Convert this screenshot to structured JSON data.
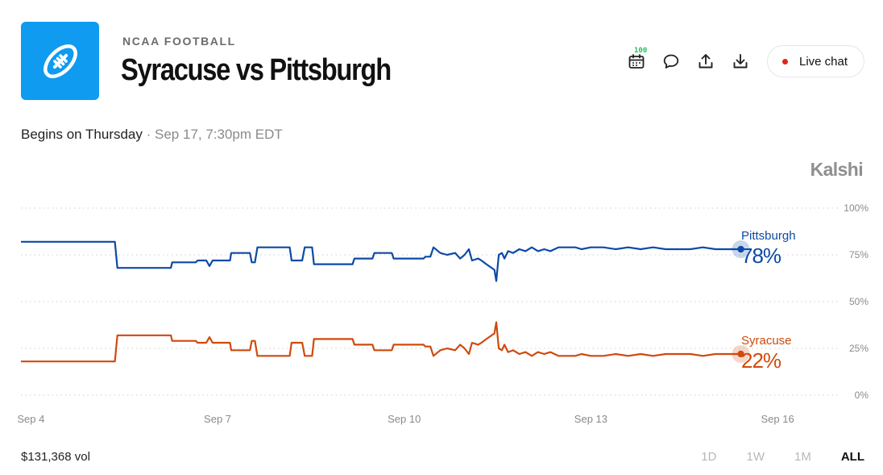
{
  "header": {
    "category": "NCAA FOOTBALL",
    "title": "Syracuse vs Pittsburgh",
    "calendar_badge": "100",
    "live_chat_label": "Live chat",
    "brand": "Kalshi"
  },
  "schedule": {
    "prefix": "Begins on Thursday",
    "separator": " · ",
    "datetime": "Sep 17, 7:30pm EDT"
  },
  "footer": {
    "volume": "$131,368 vol",
    "ranges": [
      "1D",
      "1W",
      "1M",
      "ALL"
    ],
    "active_range": "ALL"
  },
  "colors": {
    "pittsburgh": "#0b4aa6",
    "syracuse": "#cf4a0c",
    "logo": "#0e9bf0"
  },
  "chart_data": {
    "type": "line",
    "y_ticks": [
      "100%",
      "75%",
      "50%",
      "25%",
      "0%"
    ],
    "ylim": [
      0,
      100
    ],
    "x_ticks": [
      "Sep 4",
      "Sep 7",
      "Sep 10",
      "Sep 13",
      "Sep 16"
    ],
    "x_tick_positions": [
      4,
      7,
      10,
      13,
      16
    ],
    "xlim": [
      3.84,
      16.97
    ],
    "grid": true,
    "series": [
      {
        "name": "Pittsburgh",
        "label": "78%",
        "color": "#0b4aa6",
        "points": [
          [
            3.84,
            82
          ],
          [
            5.35,
            82
          ],
          [
            5.39,
            68
          ],
          [
            6.25,
            68
          ],
          [
            6.27,
            71
          ],
          [
            6.65,
            71
          ],
          [
            6.68,
            72
          ],
          [
            6.82,
            72
          ],
          [
            6.87,
            69
          ],
          [
            6.92,
            72
          ],
          [
            7.2,
            72
          ],
          [
            7.22,
            76
          ],
          [
            7.52,
            76
          ],
          [
            7.55,
            71
          ],
          [
            7.6,
            71
          ],
          [
            7.64,
            79
          ],
          [
            8.16,
            79
          ],
          [
            8.19,
            72
          ],
          [
            8.36,
            72
          ],
          [
            8.4,
            79
          ],
          [
            8.52,
            79
          ],
          [
            8.55,
            70
          ],
          [
            9.17,
            70
          ],
          [
            9.2,
            73
          ],
          [
            9.49,
            73
          ],
          [
            9.52,
            76
          ],
          [
            9.8,
            76
          ],
          [
            9.83,
            73
          ],
          [
            10.31,
            73
          ],
          [
            10.34,
            74
          ],
          [
            10.42,
            74
          ],
          [
            10.47,
            79
          ],
          [
            10.58,
            76
          ],
          [
            10.69,
            75
          ],
          [
            10.82,
            76
          ],
          [
            10.9,
            73
          ],
          [
            10.97,
            75
          ],
          [
            11.04,
            78
          ],
          [
            11.09,
            72
          ],
          [
            11.19,
            73
          ],
          [
            11.24,
            72
          ],
          [
            11.32,
            70
          ],
          [
            11.45,
            67
          ],
          [
            11.48,
            61
          ],
          [
            11.52,
            75
          ],
          [
            11.57,
            76
          ],
          [
            11.61,
            73
          ],
          [
            11.67,
            77
          ],
          [
            11.75,
            76
          ],
          [
            11.85,
            78
          ],
          [
            11.95,
            77
          ],
          [
            12.05,
            79
          ],
          [
            12.15,
            77
          ],
          [
            12.25,
            78
          ],
          [
            12.35,
            77
          ],
          [
            12.48,
            79
          ],
          [
            12.62,
            79
          ],
          [
            12.75,
            79
          ],
          [
            12.85,
            78
          ],
          [
            13.0,
            79
          ],
          [
            13.2,
            79
          ],
          [
            13.4,
            78
          ],
          [
            13.6,
            79
          ],
          [
            13.8,
            78
          ],
          [
            14.0,
            79
          ],
          [
            14.2,
            78
          ],
          [
            14.4,
            78
          ],
          [
            14.6,
            78
          ],
          [
            14.8,
            79
          ],
          [
            15.0,
            78
          ],
          [
            15.2,
            78
          ],
          [
            15.41,
            78
          ]
        ]
      },
      {
        "name": "Syracuse",
        "label": "22%",
        "color": "#cf4a0c",
        "points": [
          [
            3.84,
            18
          ],
          [
            5.35,
            18
          ],
          [
            5.39,
            32
          ],
          [
            6.25,
            32
          ],
          [
            6.27,
            29
          ],
          [
            6.65,
            29
          ],
          [
            6.68,
            28
          ],
          [
            6.82,
            28
          ],
          [
            6.87,
            31
          ],
          [
            6.92,
            28
          ],
          [
            7.2,
            28
          ],
          [
            7.22,
            24
          ],
          [
            7.52,
            24
          ],
          [
            7.55,
            29
          ],
          [
            7.6,
            29
          ],
          [
            7.64,
            21
          ],
          [
            8.16,
            21
          ],
          [
            8.19,
            28
          ],
          [
            8.36,
            28
          ],
          [
            8.4,
            21
          ],
          [
            8.52,
            21
          ],
          [
            8.55,
            30
          ],
          [
            9.17,
            30
          ],
          [
            9.2,
            27
          ],
          [
            9.49,
            27
          ],
          [
            9.52,
            24
          ],
          [
            9.8,
            24
          ],
          [
            9.83,
            27
          ],
          [
            10.31,
            27
          ],
          [
            10.34,
            26
          ],
          [
            10.42,
            26
          ],
          [
            10.47,
            21
          ],
          [
            10.58,
            24
          ],
          [
            10.69,
            25
          ],
          [
            10.82,
            24
          ],
          [
            10.9,
            27
          ],
          [
            10.97,
            25
          ],
          [
            11.04,
            22
          ],
          [
            11.09,
            28
          ],
          [
            11.19,
            27
          ],
          [
            11.24,
            28
          ],
          [
            11.32,
            30
          ],
          [
            11.45,
            33
          ],
          [
            11.48,
            39
          ],
          [
            11.52,
            25
          ],
          [
            11.57,
            24
          ],
          [
            11.61,
            27
          ],
          [
            11.67,
            23
          ],
          [
            11.75,
            24
          ],
          [
            11.85,
            22
          ],
          [
            11.95,
            23
          ],
          [
            12.05,
            21
          ],
          [
            12.15,
            23
          ],
          [
            12.25,
            22
          ],
          [
            12.35,
            23
          ],
          [
            12.48,
            21
          ],
          [
            12.62,
            21
          ],
          [
            12.75,
            21
          ],
          [
            12.85,
            22
          ],
          [
            13.0,
            21
          ],
          [
            13.2,
            21
          ],
          [
            13.4,
            22
          ],
          [
            13.6,
            21
          ],
          [
            13.8,
            22
          ],
          [
            14.0,
            21
          ],
          [
            14.2,
            22
          ],
          [
            14.4,
            22
          ],
          [
            14.6,
            22
          ],
          [
            14.8,
            21
          ],
          [
            15.0,
            22
          ],
          [
            15.2,
            22
          ],
          [
            15.41,
            22
          ]
        ]
      }
    ]
  }
}
